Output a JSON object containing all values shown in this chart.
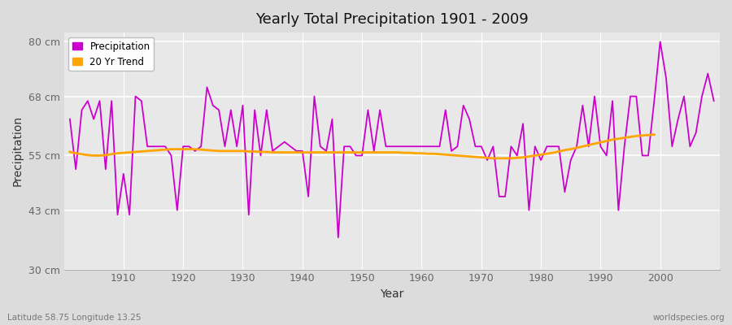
{
  "title": "Yearly Total Precipitation 1901 - 2009",
  "xlabel": "Year",
  "ylabel": "Precipitation",
  "lat_lon_label": "Latitude 58.75 Longitude 13.25",
  "source_label": "worldspecies.org",
  "ylim": [
    30,
    82
  ],
  "yticks": [
    30,
    43,
    55,
    68,
    80
  ],
  "ytick_labels": [
    "30 cm",
    "43 cm",
    "55 cm",
    "68 cm",
    "80 cm"
  ],
  "xlim": [
    1900,
    2010
  ],
  "xticks": [
    1910,
    1920,
    1930,
    1940,
    1950,
    1960,
    1970,
    1980,
    1990,
    2000
  ],
  "precip_color": "#cc00cc",
  "trend_color": "#ffa500",
  "fig_bg_color": "#dcdcdc",
  "plot_bg_color": "#e8e8e8",
  "grid_color": "#ffffff",
  "legend_labels": [
    "Precipitation",
    "20 Yr Trend"
  ],
  "years": [
    1901,
    1902,
    1903,
    1904,
    1905,
    1906,
    1907,
    1908,
    1909,
    1910,
    1911,
    1912,
    1913,
    1914,
    1915,
    1916,
    1917,
    1918,
    1919,
    1920,
    1921,
    1922,
    1923,
    1924,
    1925,
    1926,
    1927,
    1928,
    1929,
    1930,
    1931,
    1932,
    1933,
    1934,
    1935,
    1936,
    1937,
    1938,
    1939,
    1940,
    1941,
    1942,
    1943,
    1944,
    1945,
    1946,
    1947,
    1948,
    1949,
    1950,
    1951,
    1952,
    1953,
    1954,
    1955,
    1956,
    1957,
    1958,
    1959,
    1960,
    1961,
    1962,
    1963,
    1964,
    1965,
    1966,
    1967,
    1968,
    1969,
    1970,
    1971,
    1972,
    1973,
    1974,
    1975,
    1976,
    1977,
    1978,
    1979,
    1980,
    1981,
    1982,
    1983,
    1984,
    1985,
    1986,
    1987,
    1988,
    1989,
    1990,
    1991,
    1992,
    1993,
    1994,
    1995,
    1996,
    1997,
    1998,
    1999,
    2000,
    2001,
    2002,
    2003,
    2004,
    2005,
    2006,
    2007,
    2008,
    2009
  ],
  "precip": [
    63,
    52,
    65,
    67,
    63,
    67,
    52,
    67,
    42,
    51,
    42,
    68,
    67,
    57,
    57,
    57,
    57,
    55,
    43,
    57,
    57,
    56,
    57,
    70,
    66,
    65,
    57,
    65,
    57,
    66,
    42,
    65,
    55,
    65,
    56,
    57,
    58,
    57,
    56,
    56,
    46,
    68,
    57,
    56,
    63,
    37,
    57,
    57,
    55,
    55,
    65,
    56,
    65,
    57,
    57,
    57,
    57,
    57,
    57,
    57,
    57,
    57,
    57,
    65,
    56,
    57,
    66,
    63,
    57,
    57,
    54,
    57,
    46,
    46,
    57,
    55,
    62,
    43,
    57,
    54,
    57,
    57,
    57,
    47,
    54,
    57,
    66,
    57,
    68,
    57,
    55,
    67,
    43,
    57,
    68,
    68,
    55,
    55,
    67,
    80,
    72,
    57,
    63,
    68,
    57,
    60,
    68,
    73,
    67
  ],
  "trend": [
    55.8,
    55.5,
    55.3,
    55.1,
    55.0,
    55.0,
    55.1,
    55.3,
    55.5,
    55.6,
    55.7,
    55.8,
    55.9,
    56.0,
    56.1,
    56.2,
    56.3,
    56.4,
    56.4,
    56.4,
    56.4,
    56.4,
    56.3,
    56.2,
    56.1,
    56.0,
    56.0,
    56.0,
    56.0,
    56.0,
    55.9,
    55.9,
    55.8,
    55.8,
    55.7,
    55.7,
    55.7,
    55.7,
    55.7,
    55.7,
    55.7,
    55.7,
    55.7,
    55.7,
    55.7,
    55.7,
    55.7,
    55.7,
    55.7,
    55.7,
    55.7,
    55.7,
    55.7,
    55.7,
    55.7,
    55.7,
    55.6,
    55.6,
    55.5,
    55.5,
    55.4,
    55.4,
    55.3,
    55.2,
    55.1,
    55.0,
    54.9,
    54.8,
    54.7,
    54.6,
    54.5,
    54.4,
    54.4,
    54.4,
    54.4,
    54.5,
    54.6,
    54.8,
    55.0,
    55.2,
    55.4,
    55.6,
    55.9,
    56.2,
    56.4,
    56.7,
    57.0,
    57.3,
    57.6,
    57.9,
    58.2,
    58.5,
    58.7,
    58.9,
    59.1,
    59.3,
    59.4,
    59.5,
    59.6
  ]
}
